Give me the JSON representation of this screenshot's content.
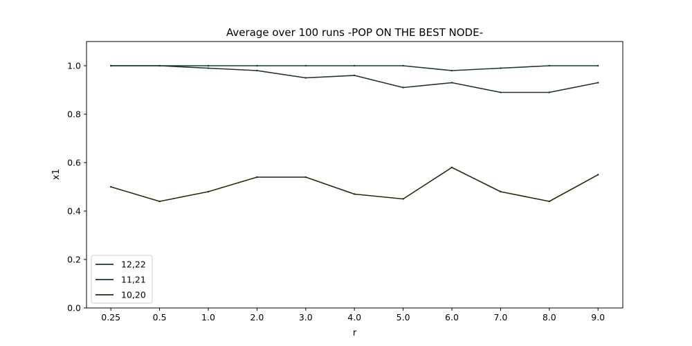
{
  "chart_data": {
    "type": "line",
    "title": "Average over 100 runs -POP ON THE BEST NODE-",
    "xlabel": "r",
    "ylabel": "x1",
    "categories": [
      "0.25",
      "0.5",
      "1.0",
      "2.0",
      "3.0",
      "4.0",
      "5.0",
      "6.0",
      "7.0",
      "8.0",
      "9.0"
    ],
    "ylim": [
      0.0,
      1.1
    ],
    "yticks": [
      "0.0",
      "0.2",
      "0.4",
      "0.6",
      "0.8",
      "1.0"
    ],
    "grid": false,
    "legend_position": "lower-left",
    "series": [
      {
        "name": "12,22",
        "color": "#1c3535",
        "values": [
          1.0,
          1.0,
          1.0,
          1.0,
          1.0,
          1.0,
          1.0,
          0.98,
          0.99,
          1.0,
          1.0
        ]
      },
      {
        "name": "11,21",
        "color": "#1c3522",
        "values": [
          1.0,
          1.0,
          0.99,
          0.98,
          0.95,
          0.96,
          0.91,
          0.93,
          0.89,
          0.89,
          0.93
        ]
      },
      {
        "name": "10,20",
        "color": "#1f2e0a",
        "values": [
          0.5,
          0.44,
          0.48,
          0.54,
          0.54,
          0.47,
          0.45,
          0.58,
          0.48,
          0.44,
          0.55
        ]
      }
    ]
  }
}
